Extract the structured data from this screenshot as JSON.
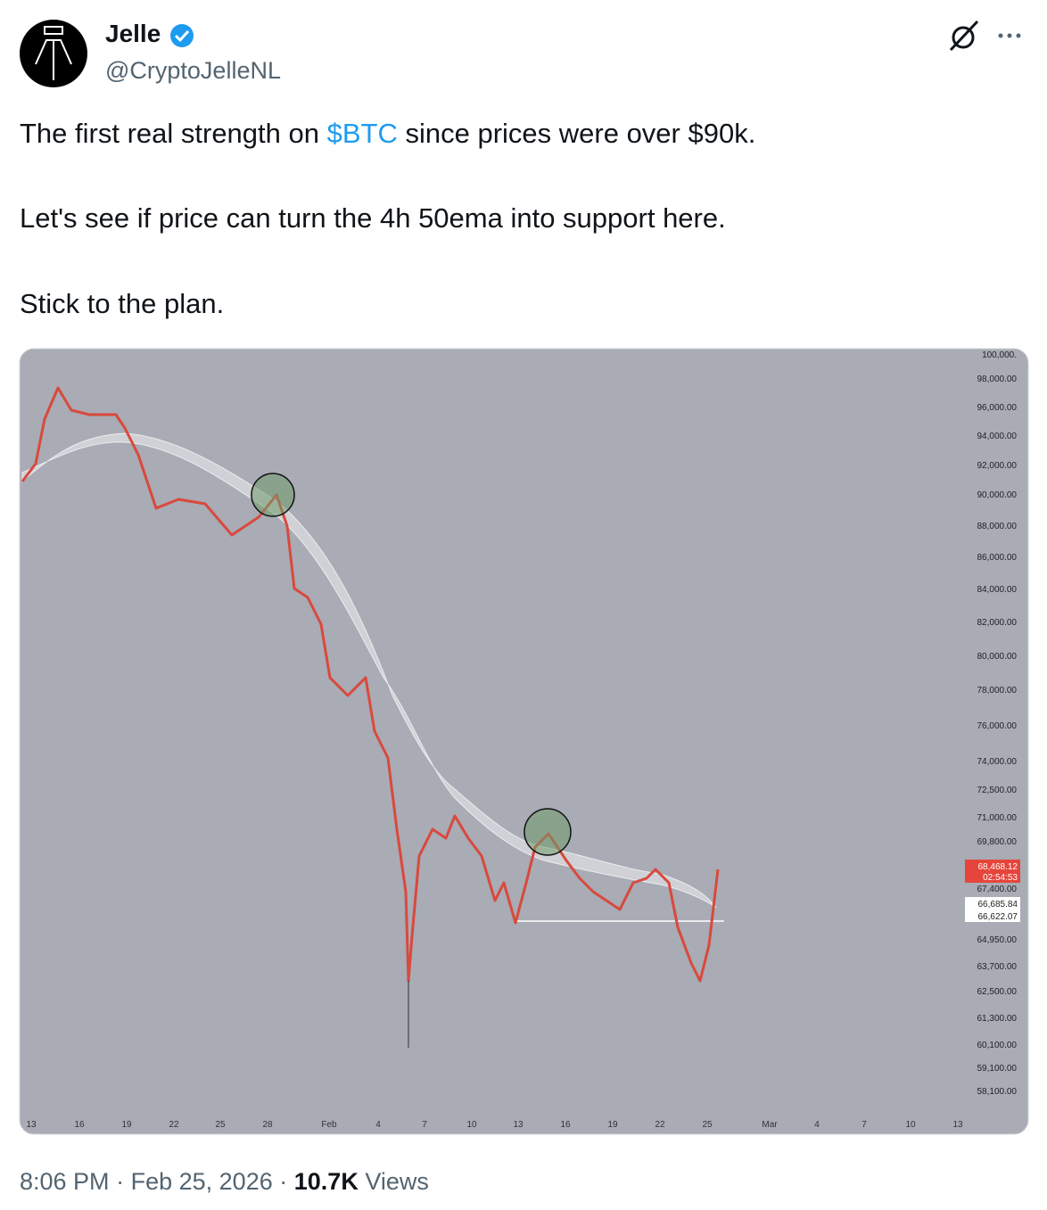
{
  "author": {
    "name": "Jelle",
    "handle": "@CryptoJelleNL"
  },
  "tweet": {
    "p1_before": "The first real strength on ",
    "cashtag": "$BTC",
    "p1_after": " since prices were over $90k.",
    "paragraphs": [
      "Let's see if price can turn the 4h 50ema into support here.",
      "Stick to the plan."
    ]
  },
  "image": {
    "price_labels": [
      "100,000.",
      "98,000.00",
      "96,000.00",
      "94,000.00",
      "92,000.00",
      "90,000.00",
      "88,000.00",
      "86,000.00",
      "84,000.00",
      "82,000.00",
      "80,000.00",
      "78,000.00",
      "76,000.00",
      "74,000.00",
      "72,500.00",
      "71,000.00",
      "69,800.00",
      "67,400.00",
      "64,950.00",
      "63,700.00",
      "62,500.00",
      "61,300.00",
      "60,100.00",
      "59,100.00",
      "58,100.00"
    ],
    "last_price": "68,468.12",
    "countdown": "02:54:53",
    "ema_fast": "66,685.84",
    "ema_slow": "66,622.07",
    "date_labels": [
      "13",
      "16",
      "19",
      "22",
      "25",
      "28",
      "Feb",
      "4",
      "7",
      "10",
      "13",
      "16",
      "19",
      "22",
      "25",
      "Mar",
      "4",
      "7",
      "10",
      "13"
    ]
  },
  "footer": {
    "time": "8:06 PM",
    "separator": "·",
    "date": "Feb 25, 2026",
    "views_count": "10.7K",
    "views_label": "Views"
  }
}
